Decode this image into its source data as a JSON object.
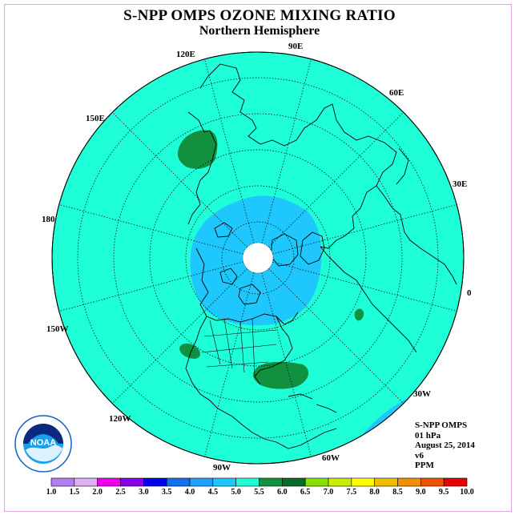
{
  "title": "S-NPP OMPS OZONE MIXING RATIO",
  "subtitle": "Northern Hemisphere",
  "longitude_labels": [
    "90E",
    "60E",
    "30E",
    "0",
    "30W",
    "60W",
    "90W",
    "120W",
    "150W",
    "180",
    "150E",
    "120E"
  ],
  "info": {
    "instrument": "S-NPP OMPS",
    "level": "01 hPa",
    "date": "August 25, 2014",
    "version": "v6",
    "units": "PPM"
  },
  "colorbar": {
    "ticks": [
      "1.0",
      "1.5",
      "2.0",
      "2.5",
      "3.0",
      "3.5",
      "4.0",
      "4.5",
      "5.0",
      "5.5",
      "6.0",
      "6.5",
      "7.0",
      "7.5",
      "8.0",
      "8.5",
      "9.0",
      "9.5",
      "10.0"
    ],
    "colors": [
      "#b57ff0",
      "#e0b0f0",
      "#ee00ee",
      "#8800ee",
      "#0000ee",
      "#1070f0",
      "#1ea0ff",
      "#1ec8ff",
      "#1effd8",
      "#119040",
      "#0a6a2a",
      "#88e000",
      "#c8ee00",
      "#ffff00",
      "#f0c000",
      "#f09000",
      "#f05000",
      "#e60000",
      "#8a5a3c"
    ]
  },
  "map_colors": {
    "background": "#1effd8",
    "polar_vortex": "#1ec8ff",
    "high_patches": "#119040",
    "no_data": "#ffffff"
  },
  "logo": {
    "text": "NOAA"
  }
}
